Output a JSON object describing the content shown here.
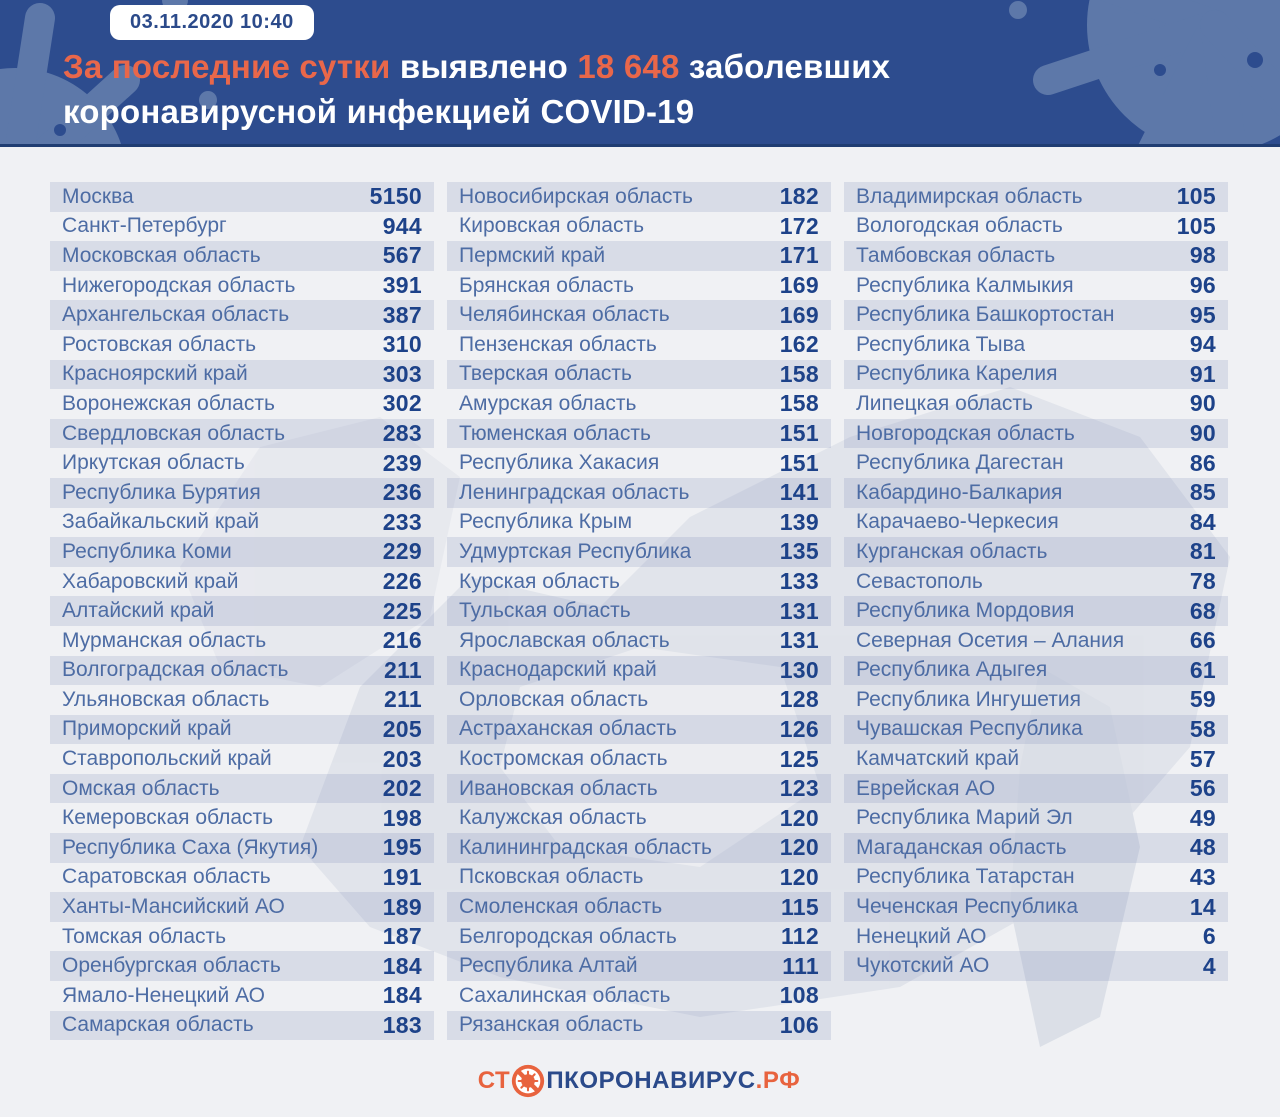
{
  "header": {
    "badge": "03.11.2020 10:40",
    "accent1": "За последние сутки",
    "mid1": "выявлено",
    "number": "18 648",
    "mid2": "заболевших",
    "line2": "коронавирусной инфекцией COVID-19"
  },
  "footer": {
    "logo_prefix": "СТ",
    "logo_middle": "ПКОРОНАВИРУС",
    "logo_suffix": ".РФ"
  },
  "colors": {
    "header_bg": "#2d4c8e",
    "accent_orange": "#e9674a",
    "logo_orange": "#e8633e",
    "navy_text": "#2b4a8a",
    "region_name": "#4d6ca4",
    "region_value": "#1d4289",
    "row_stripe": "#dfe3ee",
    "page_bg": "#f0f1f4"
  },
  "chart_data": {
    "type": "table",
    "title": "За последние сутки выявлено 18 648 заболевших коронавирусной инфекцией COVID-19",
    "timestamp": "03.11.2020 10:40",
    "total_new_cases": 18648,
    "columns": [
      [
        {
          "region": "Москва",
          "value": 5150
        },
        {
          "region": "Санкт-Петербург",
          "value": 944
        },
        {
          "region": "Московская область",
          "value": 567
        },
        {
          "region": "Нижегородская область",
          "value": 391
        },
        {
          "region": "Архангельская область",
          "value": 387
        },
        {
          "region": "Ростовская область",
          "value": 310
        },
        {
          "region": "Красноярский край",
          "value": 303
        },
        {
          "region": "Воронежская область",
          "value": 302
        },
        {
          "region": "Свердловская область",
          "value": 283
        },
        {
          "region": "Иркутская область",
          "value": 239
        },
        {
          "region": "Республика Бурятия",
          "value": 236
        },
        {
          "region": "Забайкальский край",
          "value": 233
        },
        {
          "region": "Республика Коми",
          "value": 229
        },
        {
          "region": "Хабаровский край",
          "value": 226
        },
        {
          "region": "Алтайский край",
          "value": 225
        },
        {
          "region": "Мурманская область",
          "value": 216
        },
        {
          "region": "Волгоградская область",
          "value": 211
        },
        {
          "region": "Ульяновская область",
          "value": 211
        },
        {
          "region": "Приморский край",
          "value": 205
        },
        {
          "region": "Ставропольский край",
          "value": 203
        },
        {
          "region": "Омская область",
          "value": 202
        },
        {
          "region": "Кемеровская область",
          "value": 198
        },
        {
          "region": "Республика Саха (Якутия)",
          "value": 195
        },
        {
          "region": "Саратовская область",
          "value": 191
        },
        {
          "region": "Ханты-Мансийский АО",
          "value": 189
        },
        {
          "region": "Томская область",
          "value": 187
        },
        {
          "region": "Оренбургская область",
          "value": 184
        },
        {
          "region": "Ямало-Ненецкий АО",
          "value": 184
        },
        {
          "region": "Самарская область",
          "value": 183
        }
      ],
      [
        {
          "region": "Новосибирская область",
          "value": 182
        },
        {
          "region": "Кировская область",
          "value": 172
        },
        {
          "region": "Пермский край",
          "value": 171
        },
        {
          "region": "Брянская область",
          "value": 169
        },
        {
          "region": "Челябинская область",
          "value": 169
        },
        {
          "region": "Пензенская область",
          "value": 162
        },
        {
          "region": "Тверская область",
          "value": 158
        },
        {
          "region": "Амурская область",
          "value": 158
        },
        {
          "region": "Тюменская область",
          "value": 151
        },
        {
          "region": "Республика Хакасия",
          "value": 151
        },
        {
          "region": "Ленинградская область",
          "value": 141
        },
        {
          "region": "Республика Крым",
          "value": 139
        },
        {
          "region": "Удмуртская Республика",
          "value": 135
        },
        {
          "region": "Курская область",
          "value": 133
        },
        {
          "region": "Тульская область",
          "value": 131
        },
        {
          "region": "Ярославская область",
          "value": 131
        },
        {
          "region": "Краснодарский край",
          "value": 130
        },
        {
          "region": "Орловская область",
          "value": 128
        },
        {
          "region": "Астраханская область",
          "value": 126
        },
        {
          "region": "Костромская область",
          "value": 125
        },
        {
          "region": "Ивановская область",
          "value": 123
        },
        {
          "region": "Калужская область",
          "value": 120
        },
        {
          "region": "Калининградская область",
          "value": 120
        },
        {
          "region": "Псковская область",
          "value": 120
        },
        {
          "region": "Смоленская область",
          "value": 115
        },
        {
          "region": "Белгородская область",
          "value": 112
        },
        {
          "region": "Республика Алтай",
          "value": 111
        },
        {
          "region": "Сахалинская область",
          "value": 108
        },
        {
          "region": "Рязанская область",
          "value": 106
        }
      ],
      [
        {
          "region": "Владимирская область",
          "value": 105
        },
        {
          "region": "Вологодская область",
          "value": 105
        },
        {
          "region": "Тамбовская область",
          "value": 98
        },
        {
          "region": "Республика Калмыкия",
          "value": 96
        },
        {
          "region": "Республика Башкортостан",
          "value": 95
        },
        {
          "region": "Республика Тыва",
          "value": 94
        },
        {
          "region": "Республика Карелия",
          "value": 91
        },
        {
          "region": "Липецкая область",
          "value": 90
        },
        {
          "region": "Новгородская область",
          "value": 90
        },
        {
          "region": "Республика Дагестан",
          "value": 86
        },
        {
          "region": "Кабардино-Балкария",
          "value": 85
        },
        {
          "region": "Карачаево-Черкесия",
          "value": 84
        },
        {
          "region": "Курганская область",
          "value": 81
        },
        {
          "region": "Севастополь",
          "value": 78
        },
        {
          "region": "Республика Мордовия",
          "value": 68
        },
        {
          "region": "Северная Осетия – Алания",
          "value": 66
        },
        {
          "region": "Республика Адыгея",
          "value": 61
        },
        {
          "region": "Республика Ингушетия",
          "value": 59
        },
        {
          "region": "Чувашская Республика",
          "value": 58
        },
        {
          "region": "Камчатский край",
          "value": 57
        },
        {
          "region": "Еврейская АО",
          "value": 56
        },
        {
          "region": "Республика Марий Эл",
          "value": 49
        },
        {
          "region": "Магаданская область",
          "value": 48
        },
        {
          "region": "Республика Татарстан",
          "value": 43
        },
        {
          "region": "Чеченская Республика",
          "value": 14
        },
        {
          "region": "Ненецкий АО",
          "value": 6
        },
        {
          "region": "Чукотский АО",
          "value": 4
        }
      ]
    ]
  }
}
